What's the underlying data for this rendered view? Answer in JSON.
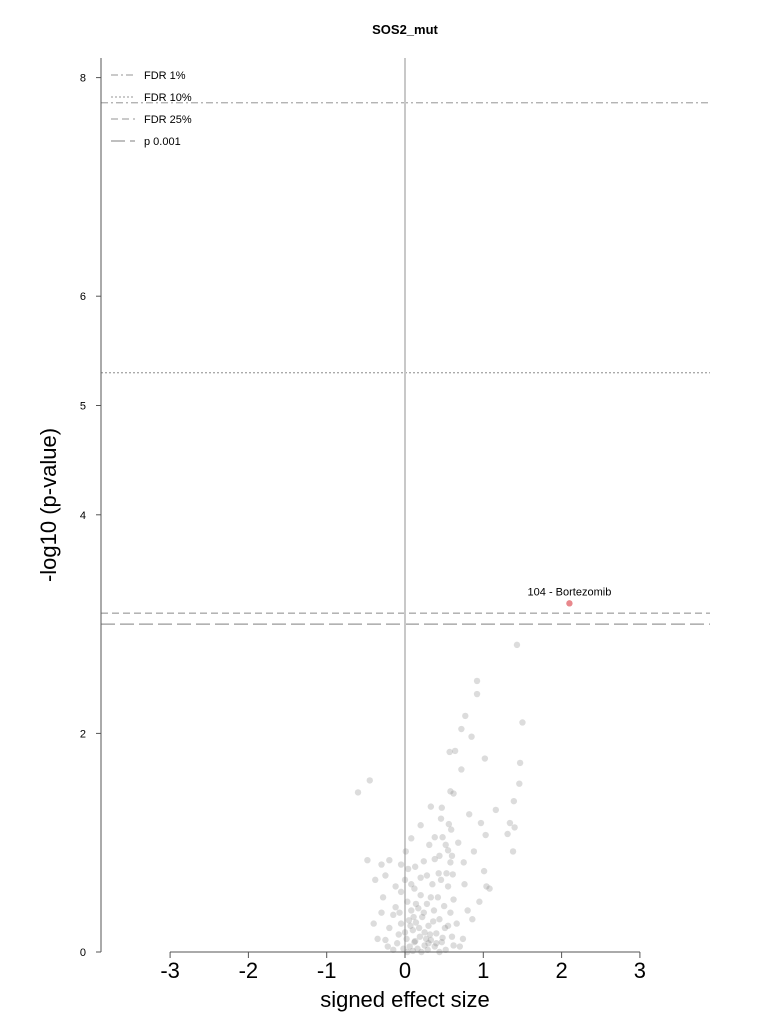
{
  "chart_data": {
    "type": "scatter",
    "title": "SOS2_mut",
    "xlabel": "signed effect size",
    "ylabel": "-log10 (p-value)",
    "xlim": [
      -3,
      3
    ],
    "ylim": [
      0,
      8.2
    ],
    "x_ticks": [
      "-3",
      "-2",
      "-1",
      "0",
      "1",
      "2",
      "3"
    ],
    "y_ticks": [
      "0",
      "2",
      "4",
      "5",
      "6",
      "8"
    ],
    "legend_position": "top-left",
    "thresholds": [
      {
        "name": "FDR 1%",
        "y": 7.77,
        "style": "dashdot",
        "color": "#aaaaaa"
      },
      {
        "name": "FDR 10%",
        "y": 5.3,
        "style": "dotted",
        "color": "#aaaaaa"
      },
      {
        "name": "FDR 25%",
        "y": 3.1,
        "style": "dashed",
        "color": "#aaaaaa"
      },
      {
        "name": "p 0.001",
        "y": 3.0,
        "style": "longdash",
        "color": "#999999"
      }
    ],
    "highlighted_point": {
      "x": 2.1,
      "y": 3.19,
      "label": "104 - Bortezomib",
      "color": "#e8888c"
    },
    "points": [
      [
        1.43,
        2.81
      ],
      [
        0.92,
        2.48
      ],
      [
        0.92,
        2.36
      ],
      [
        1.5,
        2.1
      ],
      [
        0.77,
        2.16
      ],
      [
        0.72,
        2.04
      ],
      [
        0.85,
        1.97
      ],
      [
        0.57,
        1.83
      ],
      [
        0.64,
        1.84
      ],
      [
        1.02,
        1.77
      ],
      [
        1.47,
        1.73
      ],
      [
        0.72,
        1.67
      ],
      [
        1.46,
        1.54
      ],
      [
        -0.45,
        1.57
      ],
      [
        -0.6,
        1.46
      ],
      [
        0.58,
        1.47
      ],
      [
        0.62,
        1.45
      ],
      [
        0.33,
        1.33
      ],
      [
        0.47,
        1.32
      ],
      [
        1.39,
        1.38
      ],
      [
        1.16,
        1.3
      ],
      [
        0.82,
        1.26
      ],
      [
        1.34,
        1.18
      ],
      [
        0.46,
        1.22
      ],
      [
        0.56,
        1.17
      ],
      [
        0.59,
        1.12
      ],
      [
        0.2,
        1.16
      ],
      [
        1.31,
        1.08
      ],
      [
        1.4,
        1.14
      ],
      [
        0.48,
        1.05
      ],
      [
        0.08,
        1.04
      ],
      [
        0.38,
        1.05
      ],
      [
        0.31,
        0.98
      ],
      [
        0.52,
        0.98
      ],
      [
        0.55,
        0.93
      ],
      [
        1.03,
        1.07
      ],
      [
        0.44,
        0.88
      ],
      [
        0.6,
        0.88
      ],
      [
        1.38,
        0.92
      ],
      [
        0.01,
        0.92
      ],
      [
        0.38,
        0.85
      ],
      [
        0.24,
        0.83
      ],
      [
        -0.48,
        0.84
      ],
      [
        -0.2,
        0.84
      ],
      [
        0.58,
        0.82
      ],
      [
        0.75,
        0.82
      ],
      [
        0.13,
        0.78
      ],
      [
        -0.05,
        0.8
      ],
      [
        0.43,
        0.72
      ],
      [
        1.01,
        0.74
      ],
      [
        0.28,
        0.7
      ],
      [
        0.61,
        0.71
      ],
      [
        -0.25,
        0.7
      ],
      [
        0.0,
        0.66
      ],
      [
        0.35,
        0.62
      ],
      [
        0.76,
        0.62
      ],
      [
        1.04,
        0.6
      ],
      [
        1.08,
        0.58
      ],
      [
        0.55,
        0.6
      ],
      [
        0.12,
        0.58
      ],
      [
        -0.05,
        0.55
      ],
      [
        0.2,
        0.52
      ],
      [
        0.42,
        0.5
      ],
      [
        0.62,
        0.48
      ],
      [
        -0.28,
        0.5
      ],
      [
        0.03,
        0.46
      ],
      [
        0.28,
        0.44
      ],
      [
        0.5,
        0.42
      ],
      [
        0.17,
        0.4
      ],
      [
        -0.12,
        0.41
      ],
      [
        0.08,
        0.38
      ],
      [
        0.37,
        0.38
      ],
      [
        0.58,
        0.36
      ],
      [
        -0.15,
        0.34
      ],
      [
        -0.3,
        0.36
      ],
      [
        0.22,
        0.32
      ],
      [
        0.44,
        0.3
      ],
      [
        0.05,
        0.29
      ],
      [
        0.14,
        0.27
      ],
      [
        -0.05,
        0.26
      ],
      [
        0.3,
        0.24
      ],
      [
        0.51,
        0.22
      ],
      [
        -0.2,
        0.22
      ],
      [
        0.1,
        0.2
      ],
      [
        0.25,
        0.18
      ],
      [
        0.4,
        0.17
      ],
      [
        -0.08,
        0.16
      ],
      [
        0.19,
        0.14
      ],
      [
        0.6,
        0.14
      ],
      [
        0.02,
        0.12
      ],
      [
        -0.25,
        0.11
      ],
      [
        0.33,
        0.11
      ],
      [
        0.12,
        0.09
      ],
      [
        0.47,
        0.09
      ],
      [
        -0.1,
        0.08
      ],
      [
        0.25,
        0.06
      ],
      [
        0.06,
        0.05
      ],
      [
        0.38,
        0.05
      ],
      [
        -0.02,
        0.03
      ],
      [
        0.16,
        0.03
      ],
      [
        0.29,
        0.02
      ],
      [
        0.52,
        0.02
      ],
      [
        0.1,
        0.01
      ],
      [
        -0.15,
        0.02
      ],
      [
        0.21,
        0.0
      ],
      [
        0.03,
        0.0
      ],
      [
        0.44,
        0.0
      ],
      [
        0.74,
        0.12
      ],
      [
        0.8,
        0.38
      ],
      [
        0.66,
        0.26
      ],
      [
        0.95,
        0.46
      ],
      [
        0.86,
        0.3
      ],
      [
        0.7,
        0.05
      ],
      [
        -0.35,
        0.12
      ],
      [
        -0.4,
        0.26
      ],
      [
        -0.22,
        0.05
      ],
      [
        0.14,
        0.44
      ],
      [
        0.33,
        0.5
      ],
      [
        0.08,
        0.62
      ],
      [
        0.46,
        0.66
      ],
      [
        0.18,
        0.22
      ],
      [
        0.27,
        0.12
      ],
      [
        0.36,
        0.28
      ],
      [
        0.0,
        0.18
      ],
      [
        -0.07,
        0.36
      ],
      [
        0.11,
        0.32
      ],
      [
        0.4,
        0.08
      ],
      [
        0.24,
        0.36
      ],
      [
        0.55,
        0.24
      ],
      [
        0.62,
        0.06
      ],
      [
        0.3,
        0.08
      ],
      [
        0.13,
        0.1
      ],
      [
        -0.3,
        0.8
      ],
      [
        -0.38,
        0.66
      ],
      [
        0.88,
        0.92
      ],
      [
        0.97,
        1.18
      ],
      [
        0.68,
        1.0
      ],
      [
        0.53,
        0.72
      ],
      [
        0.2,
        0.68
      ],
      [
        0.04,
        0.76
      ],
      [
        -0.12,
        0.6
      ],
      [
        0.32,
        0.16
      ],
      [
        0.07,
        0.24
      ],
      [
        0.48,
        0.13
      ]
    ]
  }
}
